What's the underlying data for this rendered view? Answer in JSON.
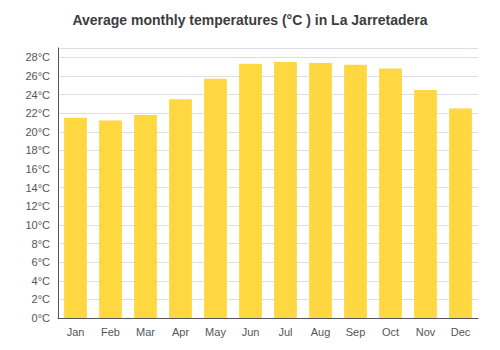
{
  "chart_data": {
    "type": "bar",
    "title": "Average monthly temperatures (°C ) in La Jarretadera",
    "categories": [
      "Jan",
      "Feb",
      "Mar",
      "Apr",
      "May",
      "Jun",
      "Jul",
      "Aug",
      "Sep",
      "Oct",
      "Nov",
      "Dec"
    ],
    "values": [
      21.5,
      21.2,
      21.8,
      23.5,
      25.7,
      27.3,
      27.5,
      27.4,
      27.2,
      26.8,
      24.5,
      22.5
    ],
    "color": "#FFD740",
    "ylim": [
      0,
      29
    ],
    "yticks": [
      {
        "value": 0,
        "label": "0°C"
      },
      {
        "value": 2,
        "label": "2°C"
      },
      {
        "value": 4,
        "label": "4°C"
      },
      {
        "value": 6,
        "label": "6°C"
      },
      {
        "value": 8,
        "label": "8°C"
      },
      {
        "value": 10,
        "label": "10°C"
      },
      {
        "value": 12,
        "label": "12°C"
      },
      {
        "value": 14,
        "label": "14°C"
      },
      {
        "value": 16,
        "label": "16°C"
      },
      {
        "value": 18,
        "label": "18°C"
      },
      {
        "value": 20,
        "label": "20°C"
      },
      {
        "value": 22,
        "label": "22°C"
      },
      {
        "value": 24,
        "label": "24°C"
      },
      {
        "value": 26,
        "label": "26°C"
      },
      {
        "value": 28,
        "label": "28°C"
      }
    ],
    "grid": true
  }
}
